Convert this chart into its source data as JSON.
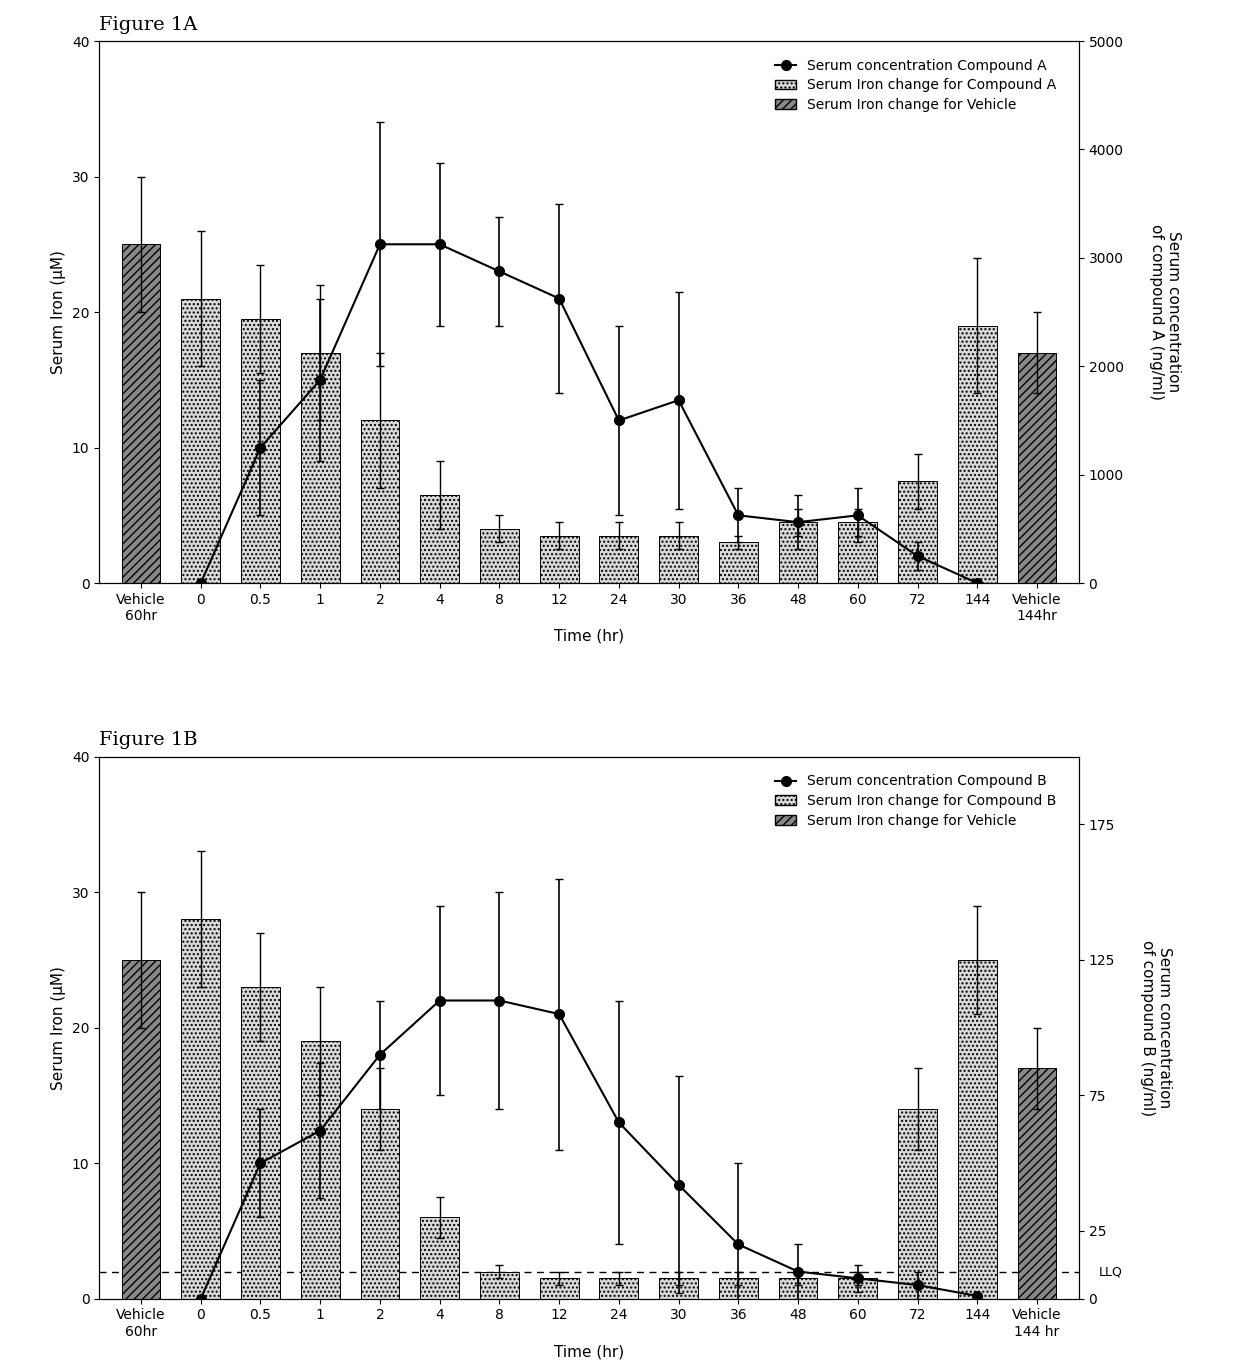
{
  "fig1A": {
    "title": "Figure 1A",
    "xlabel": "Time (hr)",
    "ylabel_left": "Serum Iron (μM)",
    "ylabel_right": "Serum concentration\nof compound A (ng/ml)",
    "ylim_left": [
      0,
      40
    ],
    "ylim_right": [
      0,
      5000
    ],
    "yticks_left": [
      0,
      10,
      20,
      30,
      40
    ],
    "yticks_right": [
      0,
      1000,
      2000,
      3000,
      4000,
      5000
    ],
    "xtick_labels": [
      "Vehicle\n60hr",
      "0",
      "0.5",
      "1",
      "2",
      "4",
      "8",
      "12",
      "24",
      "30",
      "36",
      "48",
      "60",
      "72",
      "144",
      "Vehicle\n144hr"
    ],
    "bar_positions": [
      0,
      1,
      2,
      3,
      4,
      5,
      6,
      7,
      8,
      9,
      10,
      11,
      12,
      13,
      14,
      15
    ],
    "compound_bars": [
      0,
      21,
      19.5,
      17,
      12,
      6.5,
      4,
      3.5,
      3.5,
      3.5,
      3,
      4.5,
      4.5,
      7.5,
      19,
      0
    ],
    "compound_bars_err_low": [
      0,
      5,
      4,
      5,
      5,
      2.5,
      1,
      1,
      1,
      1,
      0.5,
      1,
      1,
      2,
      5,
      0
    ],
    "compound_bars_err_high": [
      0,
      5,
      4,
      5,
      5,
      2.5,
      1,
      1,
      1,
      1,
      0.5,
      1,
      1,
      2,
      5,
      0
    ],
    "vehicle_bars": [
      25,
      0,
      0,
      0,
      0,
      0,
      0,
      0,
      0,
      0,
      0,
      0,
      0,
      0,
      0,
      17
    ],
    "vehicle_bars_err_low": [
      5,
      0,
      0,
      0,
      0,
      0,
      0,
      0,
      0,
      0,
      0,
      0,
      0,
      0,
      0,
      3
    ],
    "vehicle_bars_err_high": [
      5,
      0,
      0,
      0,
      0,
      0,
      0,
      0,
      0,
      0,
      0,
      0,
      0,
      0,
      0,
      3
    ],
    "line_positions": [
      1,
      2,
      3,
      4,
      5,
      6,
      7,
      8,
      9,
      10,
      11,
      12,
      13,
      14
    ],
    "line_values_ngml": [
      0,
      1250,
      1875,
      3125,
      3125,
      2875,
      2625,
      1500,
      1687,
      625,
      562,
      625,
      250,
      0
    ],
    "line_err_low_ngml": [
      0,
      625,
      750,
      1125,
      750,
      500,
      875,
      875,
      1000,
      250,
      250,
      250,
      125,
      0
    ],
    "line_err_high_ngml": [
      0,
      625,
      750,
      1125,
      750,
      500,
      875,
      875,
      1000,
      250,
      250,
      250,
      125,
      0
    ],
    "legend_items": [
      "Serum concentration Compound A",
      "Serum Iron change for Compound A",
      "Serum Iron change for Vehicle"
    ]
  },
  "fig1B": {
    "title": "Figure 1B",
    "xlabel": "Time (hr)",
    "ylabel_left": "Serum Iron (μM)",
    "ylabel_right": "Serum concentration\nof compound B (ng/ml)",
    "ylim_left": [
      0,
      40
    ],
    "ylim_right": [
      0,
      200
    ],
    "yticks_left": [
      0,
      10,
      20,
      30,
      40
    ],
    "yticks_right": [
      0,
      25,
      75,
      125,
      175
    ],
    "xtick_labels": [
      "Vehicle\n60hr",
      "0",
      "0.5",
      "1",
      "2",
      "4",
      "8",
      "12",
      "24",
      "30",
      "36",
      "48",
      "60",
      "72",
      "144",
      "Vehicle\n144 hr"
    ],
    "bar_positions": [
      0,
      1,
      2,
      3,
      4,
      5,
      6,
      7,
      8,
      9,
      10,
      11,
      12,
      13,
      14,
      15
    ],
    "compound_bars": [
      0,
      28,
      23,
      19,
      14,
      6,
      2,
      1.5,
      1.5,
      1.5,
      1.5,
      1.5,
      1.5,
      14,
      25,
      0
    ],
    "compound_bars_err_low": [
      0,
      5,
      4,
      4,
      3,
      1.5,
      0.5,
      0.5,
      0.5,
      0.5,
      0.5,
      0.5,
      0.5,
      3,
      4,
      0
    ],
    "compound_bars_err_high": [
      0,
      5,
      4,
      4,
      3,
      1.5,
      0.5,
      0.5,
      0.5,
      0.5,
      0.5,
      0.5,
      0.5,
      3,
      4,
      0
    ],
    "vehicle_bars": [
      25,
      0,
      0,
      0,
      0,
      0,
      0,
      0,
      0,
      0,
      0,
      0,
      0,
      0,
      0,
      17
    ],
    "vehicle_bars_err_low": [
      5,
      0,
      0,
      0,
      0,
      0,
      0,
      0,
      0,
      0,
      0,
      0,
      0,
      0,
      0,
      3
    ],
    "vehicle_bars_err_high": [
      5,
      0,
      0,
      0,
      0,
      0,
      0,
      0,
      0,
      0,
      0,
      0,
      0,
      0,
      0,
      3
    ],
    "line_positions": [
      1,
      2,
      3,
      4,
      5,
      6,
      7,
      8,
      9,
      10,
      11,
      12,
      13,
      14
    ],
    "line_values_ngml": [
      0,
      50,
      62,
      90,
      110,
      110,
      105,
      65,
      42,
      20,
      10,
      7.5,
      5,
      1
    ],
    "line_err_low_ngml": [
      0,
      20,
      25,
      20,
      35,
      40,
      50,
      45,
      40,
      30,
      10,
      5,
      5,
      1
    ],
    "line_err_high_ngml": [
      0,
      20,
      25,
      20,
      35,
      40,
      50,
      45,
      40,
      30,
      10,
      5,
      5,
      1
    ],
    "llq_value_ngml": 10,
    "legend_items": [
      "Serum concentration Compound B",
      "Serum Iron change for Compound B",
      "Serum Iron change for Vehicle"
    ]
  },
  "bar_width": 0.65,
  "compound_bar_color": "#d8d8d8",
  "compound_bar_hatch": "....",
  "vehicle_bar_color": "#888888",
  "vehicle_bar_hatch": "////",
  "line_color": "#000000",
  "background_color": "#ffffff",
  "fig_title_fontsize": 14,
  "axis_label_fontsize": 11,
  "tick_fontsize": 10,
  "legend_fontsize": 10
}
